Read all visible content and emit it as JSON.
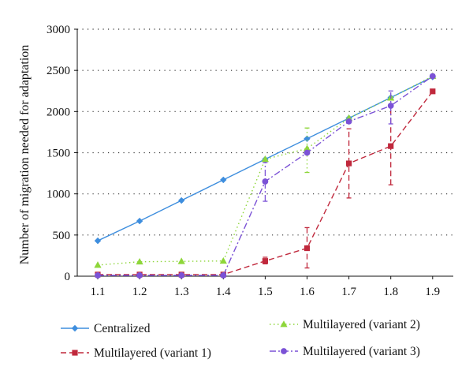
{
  "chart_data": {
    "type": "line",
    "title": "",
    "xlabel": "",
    "ylabel": "Number of migration needed for adaptation",
    "x": [
      1.1,
      1.2,
      1.3,
      1.4,
      1.5,
      1.6,
      1.7,
      1.8,
      1.9
    ],
    "x_tick_labels": [
      "1.1",
      "1.2",
      "1.3",
      "1.4",
      "1.5",
      "1.6",
      "1.7",
      "1.8",
      "1.9"
    ],
    "ylim": [
      0,
      3000
    ],
    "y_ticks": [
      0,
      500,
      1000,
      1500,
      2000,
      2500,
      3000
    ],
    "y_tick_labels": [
      "0",
      "500",
      "1000",
      "1500",
      "2000",
      "2500",
      "3000"
    ],
    "grid": "horizontal-dotted",
    "legend_position": "bottom",
    "series": [
      {
        "name": "Centralized",
        "color": "#3e8ede",
        "marker": "diamond",
        "dash": "solid",
        "values": [
          430,
          670,
          920,
          1170,
          1420,
          1670,
          1920,
          2170,
          2420
        ],
        "errors": [
          null,
          null,
          null,
          null,
          null,
          null,
          null,
          null,
          null
        ]
      },
      {
        "name": "Multilayered (variant 1)",
        "color": "#c0283c",
        "marker": "square",
        "dash": "dash",
        "values": [
          20,
          20,
          20,
          20,
          185,
          340,
          1370,
          1580,
          2245
        ],
        "errors": [
          null,
          null,
          null,
          null,
          [
            150,
            230
          ],
          [
            100,
            590
          ],
          [
            950,
            1790
          ],
          [
            1110,
            2060
          ],
          null
        ]
      },
      {
        "name": "Multilayered (variant 2)",
        "color": "#8ed63a",
        "marker": "triangle",
        "dash": "dot",
        "values": [
          135,
          175,
          180,
          185,
          1420,
          1550,
          1920,
          2165,
          2430
        ],
        "errors": [
          null,
          null,
          null,
          null,
          null,
          [
            1260,
            1800
          ],
          null,
          null,
          null
        ]
      },
      {
        "name": "Multilayered (variant 3)",
        "color": "#7b52d6",
        "marker": "circle",
        "dash": "dashdot",
        "values": [
          10,
          10,
          10,
          10,
          1150,
          1500,
          1880,
          2070,
          2430
        ],
        "errors": [
          null,
          null,
          null,
          null,
          [
            910,
            1380
          ],
          null,
          null,
          [
            1850,
            2250
          ],
          null
        ]
      }
    ]
  }
}
